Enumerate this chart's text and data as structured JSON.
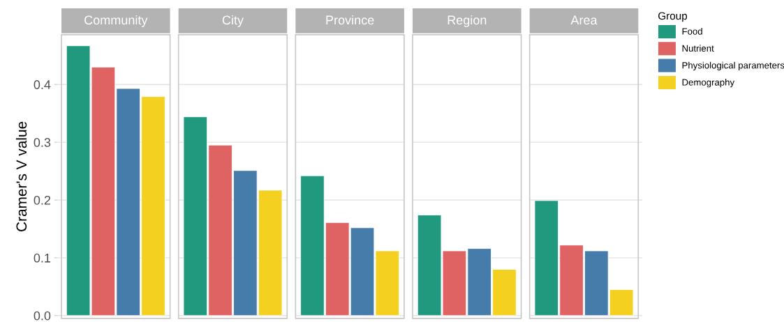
{
  "chart_data": {
    "type": "bar",
    "ylabel": "Cramer's V value",
    "categories": [
      "Community",
      "City",
      "Province",
      "Region",
      "Area"
    ],
    "ylim": [
      -0.005,
      0.486
    ],
    "yticks": [
      {
        "value": 0,
        "label": "0.0"
      },
      {
        "value": 0.1,
        "label": "0.1"
      },
      {
        "value": 0.2,
        "label": "0.2"
      },
      {
        "value": 0.3,
        "label": "0.3"
      },
      {
        "value": 0.4,
        "label": "0.4"
      }
    ],
    "grid": "y",
    "legend": "right",
    "legend_title": "Group",
    "series": [
      {
        "name": "Food",
        "color": "#21997f",
        "values": [
          0.467,
          0.344,
          0.242,
          0.174,
          0.199
        ]
      },
      {
        "name": "Nutrient",
        "color": "#e06363",
        "values": [
          0.43,
          0.295,
          0.161,
          0.112,
          0.122
        ]
      },
      {
        "name": "Physiological parameters",
        "color": "#467ca9",
        "values": [
          0.393,
          0.251,
          0.152,
          0.116,
          0.112
        ]
      },
      {
        "name": "Demography",
        "color": "#f4d020",
        "values": [
          0.379,
          0.217,
          0.112,
          0.08,
          0.045
        ]
      }
    ]
  }
}
